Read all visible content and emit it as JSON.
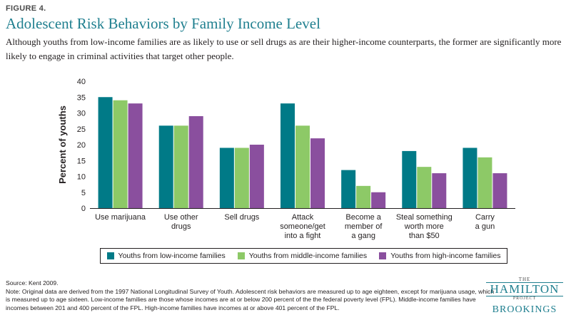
{
  "figure_label": "FIGURE 4.",
  "header": {
    "title": "Adolescent Risk Behaviors by Family Income Level",
    "subtitle": "Although youths from low-income families are as likely to use or sell drugs as are their higher-income counterparts, the former are significantly more likely to engage in criminal activities that target other people."
  },
  "chart_data": {
    "type": "bar",
    "categories": [
      [
        "Use marijuana"
      ],
      [
        "Use other",
        "drugs"
      ],
      [
        "Sell drugs"
      ],
      [
        "Attack",
        "someone/get",
        "into a fight"
      ],
      [
        "Become a",
        "member of",
        "a gang"
      ],
      [
        "Steal something",
        "worth more",
        "than $50"
      ],
      [
        "Carry",
        "a gun"
      ]
    ],
    "series": [
      {
        "name": "Youths from low-income families",
        "color": "#007a87",
        "values": [
          35,
          26,
          19,
          33,
          12,
          18,
          19
        ]
      },
      {
        "name": "Youths from middle-income families",
        "color": "#8dc967",
        "values": [
          34,
          26,
          19,
          26,
          7,
          13,
          16
        ]
      },
      {
        "name": "Youths from high-income families",
        "color": "#8a4f9e",
        "values": [
          33,
          29,
          20,
          22,
          5,
          11,
          11
        ]
      }
    ],
    "ylabel": "Percent of youths",
    "ylim": [
      0,
      40
    ],
    "yticks": [
      0,
      5,
      10,
      15,
      20,
      25,
      30,
      35,
      40
    ],
    "grid": false,
    "legend_position": "bottom"
  },
  "notes": {
    "source": "Source: Kent 2009.",
    "note": "Note: Original data are derived from the 1997 National Longitudinal Survey of Youth. Adolescent risk behaviors are measured up to age eighteen, except for marijuana usage, which is measured up to age sixteen. Low-income families are those whose incomes are at or below 200 percent of the the federal poverty level (FPL). Middle-income families have incomes between 201 and 400 percent of the FPL. High-income families have incomes at or above 401 percent of the FPL."
  },
  "logo": {
    "the": "THE",
    "hamilton": "HAMILTON",
    "project": "PROJECT",
    "brookings": "BROOKINGS"
  }
}
